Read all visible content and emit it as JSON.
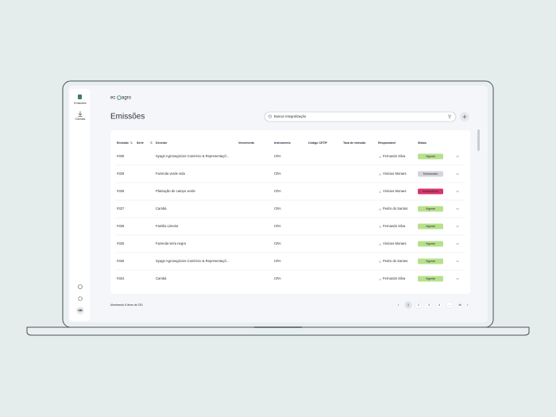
{
  "logo": {
    "left": "ec",
    "right": "agro"
  },
  "sidebar": {
    "items": [
      "Emissões",
      "Clientes"
    ],
    "avatar": "NB"
  },
  "header": {
    "title": "Emissões",
    "search_placeholder": "Buscar integralização"
  },
  "table": {
    "columns": [
      "Emissão",
      "Série",
      "Devedor",
      "Vencimento",
      "Instrumento",
      "Código CETIP",
      "Taxa de emissão",
      "Responsável",
      "Status"
    ],
    "rows": [
      {
        "id": "#330",
        "devedor": "Syagri Agronegócios Comércio & Representaçõ...",
        "instrumento": "CRA",
        "responsavel": "Fernando Silva",
        "status": {
          "label": "Vigente",
          "color": "#b7e08c",
          "text_color": "#2f5a14"
        }
      },
      {
        "id": "#329",
        "devedor": "Fazenda verde vida",
        "instrumento": "CRA",
        "responsavel": "Vinicius Moraes",
        "status": {
          "label": "Estruturado",
          "color": "#d3d5d8",
          "text_color": "#3a3d42"
        }
      },
      {
        "id": "#328",
        "devedor": "Plantação de campo verde",
        "instrumento": "CRA",
        "responsavel": "Vinicius Moraes",
        "status": {
          "label": "Inadimplente",
          "color": "#d9336d",
          "text_color": "#ffffff"
        }
      },
      {
        "id": "#327",
        "devedor": "Cambá",
        "instrumento": "CRA",
        "responsavel": "Pedro do Santos",
        "status": {
          "label": "Vigente",
          "color": "#b7e08c",
          "text_color": "#2f5a14"
        }
      },
      {
        "id": "#326",
        "devedor": "Familia Limeira",
        "instrumento": "CRA",
        "responsavel": "Fernando Silva",
        "status": {
          "label": "Vigente",
          "color": "#b7e08c",
          "text_color": "#2f5a14"
        }
      },
      {
        "id": "#325",
        "devedor": "Fazenda terra negra",
        "instrumento": "CRA",
        "responsavel": "Vinicius Moraes",
        "status": {
          "label": "Vigente",
          "color": "#b7e08c",
          "text_color": "#2f5a14"
        }
      },
      {
        "id": "#325",
        "devedor": "Syagri Agronegócios Comércio & Representaçõ...",
        "instrumento": "CRA",
        "responsavel": "Pedro do Santos",
        "status": {
          "label": "Vigente",
          "color": "#b7e08c",
          "text_color": "#2f5a14"
        }
      },
      {
        "id": "#324",
        "devedor": "Cambá",
        "instrumento": "CRA",
        "responsavel": "Fernando Silva",
        "status": {
          "label": "Vigente",
          "color": "#b7e08c",
          "text_color": "#2f5a14"
        }
      }
    ]
  },
  "footer": {
    "summary": "Mostrando 8 itens de 230",
    "pages": [
      "1",
      "2",
      "3",
      "4",
      "...",
      "46"
    ]
  }
}
